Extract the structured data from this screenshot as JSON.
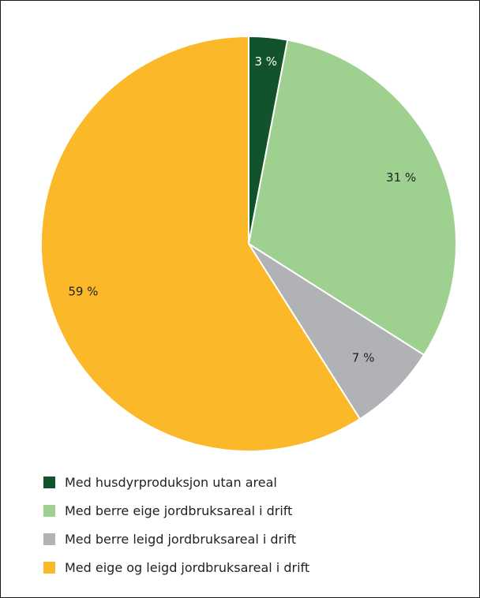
{
  "chart_data": {
    "type": "pie",
    "title": "",
    "categories": [
      "Med husdyrproduksjon utan areal",
      "Med berre eige jordbruksareal i drift",
      "Med berre leigd jordbruksareal i drift",
      "Med eige og leigd jordbruksareal i drift"
    ],
    "values": [
      3,
      31,
      7,
      59
    ],
    "labels": [
      "3 %",
      "31 %",
      "7 %",
      "59 %"
    ],
    "colors": [
      "#13532c",
      "#9ed190",
      "#b1b2b5",
      "#fbb829"
    ],
    "start_angle_deg": 0,
    "direction": "clockwise",
    "legend_position": "bottom-left"
  }
}
